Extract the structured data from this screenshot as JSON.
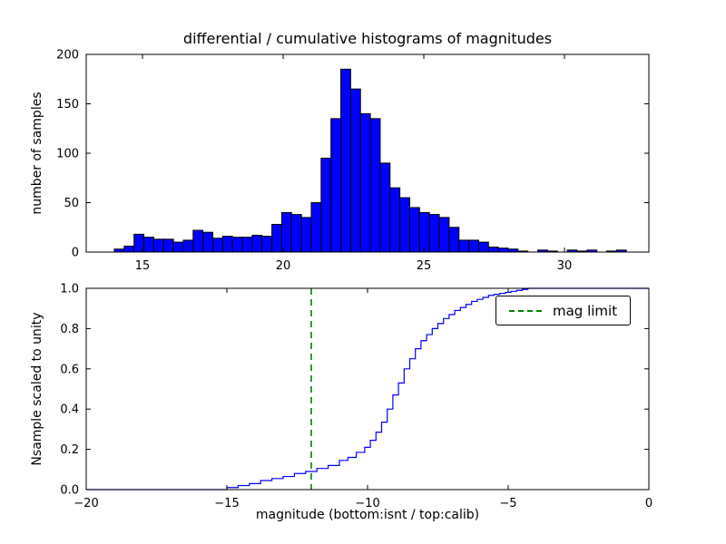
{
  "figure": {
    "background": "#ffffff",
    "frame_color": "#000000"
  },
  "chart_data": [
    {
      "type": "bar",
      "role": "differential-histogram",
      "title": "differential / cumulative histograms of magnitudes",
      "ylabel": "number of samples",
      "xlim": [
        13.0,
        33.0
      ],
      "ylim": [
        0,
        200
      ],
      "xticks": [
        15,
        20,
        25,
        30
      ],
      "xtick_labels": [
        "15",
        "20",
        "25",
        "30"
      ],
      "yticks": [
        0,
        50,
        100,
        150,
        200
      ],
      "ytick_labels": [
        "0",
        "50",
        "100",
        "150",
        "200"
      ],
      "bar_color": "#0000ff",
      "bar_edge_color": "#000000",
      "bin_start": 14.0,
      "bin_width": 0.35,
      "values": [
        3,
        6,
        18,
        15,
        13,
        13,
        10,
        12,
        22,
        20,
        14,
        16,
        15,
        15,
        17,
        16,
        28,
        40,
        38,
        35,
        50,
        95,
        135,
        185,
        165,
        140,
        135,
        90,
        65,
        55,
        45,
        40,
        38,
        35,
        25,
        12,
        12,
        10,
        5,
        4,
        3,
        1,
        0,
        2,
        1,
        0,
        2,
        1,
        2,
        0,
        1,
        2
      ],
      "grid": false
    },
    {
      "type": "line",
      "role": "cumulative-histogram",
      "step": true,
      "ylabel": "Nsample scaled to unity",
      "xlabel": "magnitude (bottom:isnt / top:calib)",
      "xlim": [
        -20,
        0
      ],
      "ylim": [
        0.0,
        1.0
      ],
      "xticks": [
        -20,
        -15,
        -10,
        -5,
        0
      ],
      "xtick_labels": [
        "−20",
        "−15",
        "−10",
        "−5",
        "0"
      ],
      "yticks": [
        0.0,
        0.2,
        0.4,
        0.6,
        0.8,
        1.0
      ],
      "ytick_labels": [
        "0.0",
        "0.2",
        "0.4",
        "0.6",
        "0.8",
        "1.0"
      ],
      "line_color": "#0000ff",
      "points": [
        [
          -20,
          0
        ],
        [
          -15.4,
          0
        ],
        [
          -15.0,
          0.01
        ],
        [
          -14.6,
          0.02
        ],
        [
          -14.2,
          0.03
        ],
        [
          -13.8,
          0.045
        ],
        [
          -13.4,
          0.055
        ],
        [
          -13.0,
          0.065
        ],
        [
          -12.6,
          0.08
        ],
        [
          -12.2,
          0.09
        ],
        [
          -11.8,
          0.105
        ],
        [
          -11.4,
          0.12
        ],
        [
          -11.0,
          0.145
        ],
        [
          -10.7,
          0.16
        ],
        [
          -10.4,
          0.185
        ],
        [
          -10.1,
          0.21
        ],
        [
          -9.9,
          0.245
        ],
        [
          -9.7,
          0.285
        ],
        [
          -9.5,
          0.335
        ],
        [
          -9.3,
          0.4
        ],
        [
          -9.1,
          0.47
        ],
        [
          -8.9,
          0.53
        ],
        [
          -8.7,
          0.6
        ],
        [
          -8.5,
          0.65
        ],
        [
          -8.3,
          0.7
        ],
        [
          -8.1,
          0.74
        ],
        [
          -7.9,
          0.77
        ],
        [
          -7.7,
          0.8
        ],
        [
          -7.5,
          0.825
        ],
        [
          -7.3,
          0.85
        ],
        [
          -7.1,
          0.87
        ],
        [
          -6.9,
          0.89
        ],
        [
          -6.7,
          0.905
        ],
        [
          -6.5,
          0.92
        ],
        [
          -6.3,
          0.935
        ],
        [
          -6.1,
          0.945
        ],
        [
          -5.9,
          0.955
        ],
        [
          -5.7,
          0.965
        ],
        [
          -5.5,
          0.97
        ],
        [
          -5.3,
          0.975
        ],
        [
          -5.1,
          0.98
        ],
        [
          -4.9,
          0.985
        ],
        [
          -4.7,
          0.99
        ],
        [
          -4.5,
          0.995
        ],
        [
          -4.3,
          1.0
        ],
        [
          0,
          1.0
        ]
      ],
      "vline": {
        "x": -12,
        "color": "#008000",
        "style": "dashed",
        "label": "mag limit"
      },
      "legend": {
        "position": "upper right",
        "entries": [
          {
            "label": "mag limit",
            "color": "#008000",
            "style": "dashed"
          }
        ]
      },
      "grid": false
    }
  ]
}
